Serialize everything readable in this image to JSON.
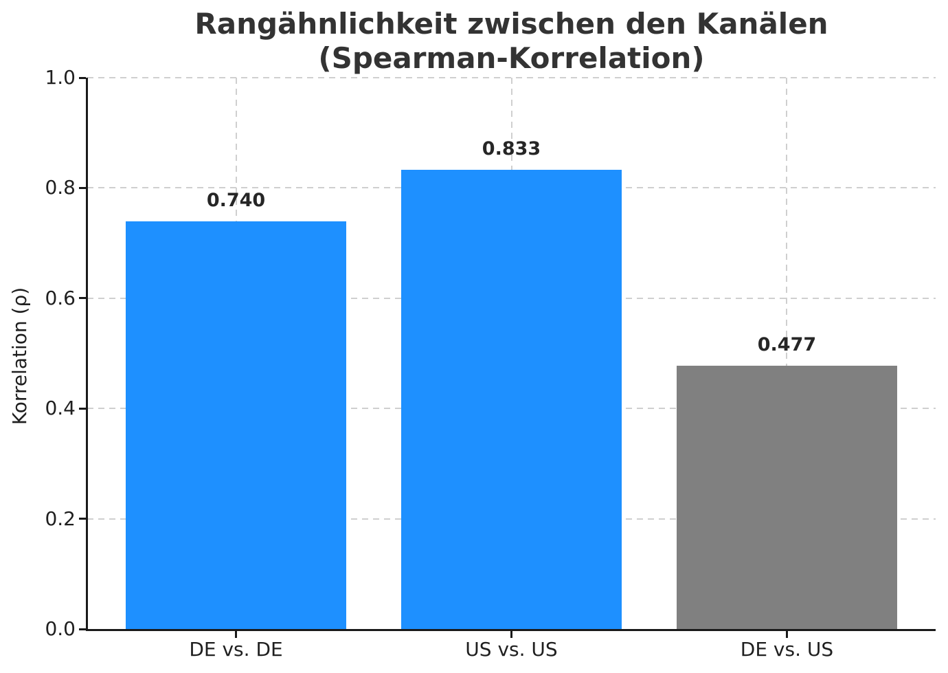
{
  "title": {
    "line1": "Rangähnlichkeit zwischen den Kanälen",
    "line2": "(Spearman-Korrelation)"
  },
  "y_axis": {
    "label": "Korrelation (ρ)",
    "ticks": [
      "0.0",
      "0.2",
      "0.4",
      "0.6",
      "0.8",
      "1.0"
    ]
  },
  "chart_data": {
    "type": "bar",
    "title": "Rangähnlichkeit zwischen den Kanälen (Spearman-Korrelation)",
    "categories": [
      "DE vs. DE",
      "US vs. US",
      "DE vs. US"
    ],
    "values": [
      0.74,
      0.833,
      0.477
    ],
    "bar_value_labels": [
      "0.740",
      "0.833",
      "0.477"
    ],
    "bar_colors": [
      "#1e90ff",
      "#1e90ff",
      "#808080"
    ],
    "xlabel": "",
    "ylabel": "Korrelation (ρ)",
    "ylim": [
      0.0,
      1.0
    ],
    "ytick_values": [
      0.0,
      0.2,
      0.4,
      0.6,
      0.8,
      1.0
    ],
    "grid": "dashed, horizontal and vertical",
    "legend": "none"
  },
  "colors": {
    "bar_blue": "#1e90ff",
    "bar_gray": "#808080",
    "grid": "#cfcfcf",
    "spine": "#1a1a1a",
    "title_text": "#333333",
    "tick_text": "#1f1f1f",
    "background": "#ffffff"
  }
}
